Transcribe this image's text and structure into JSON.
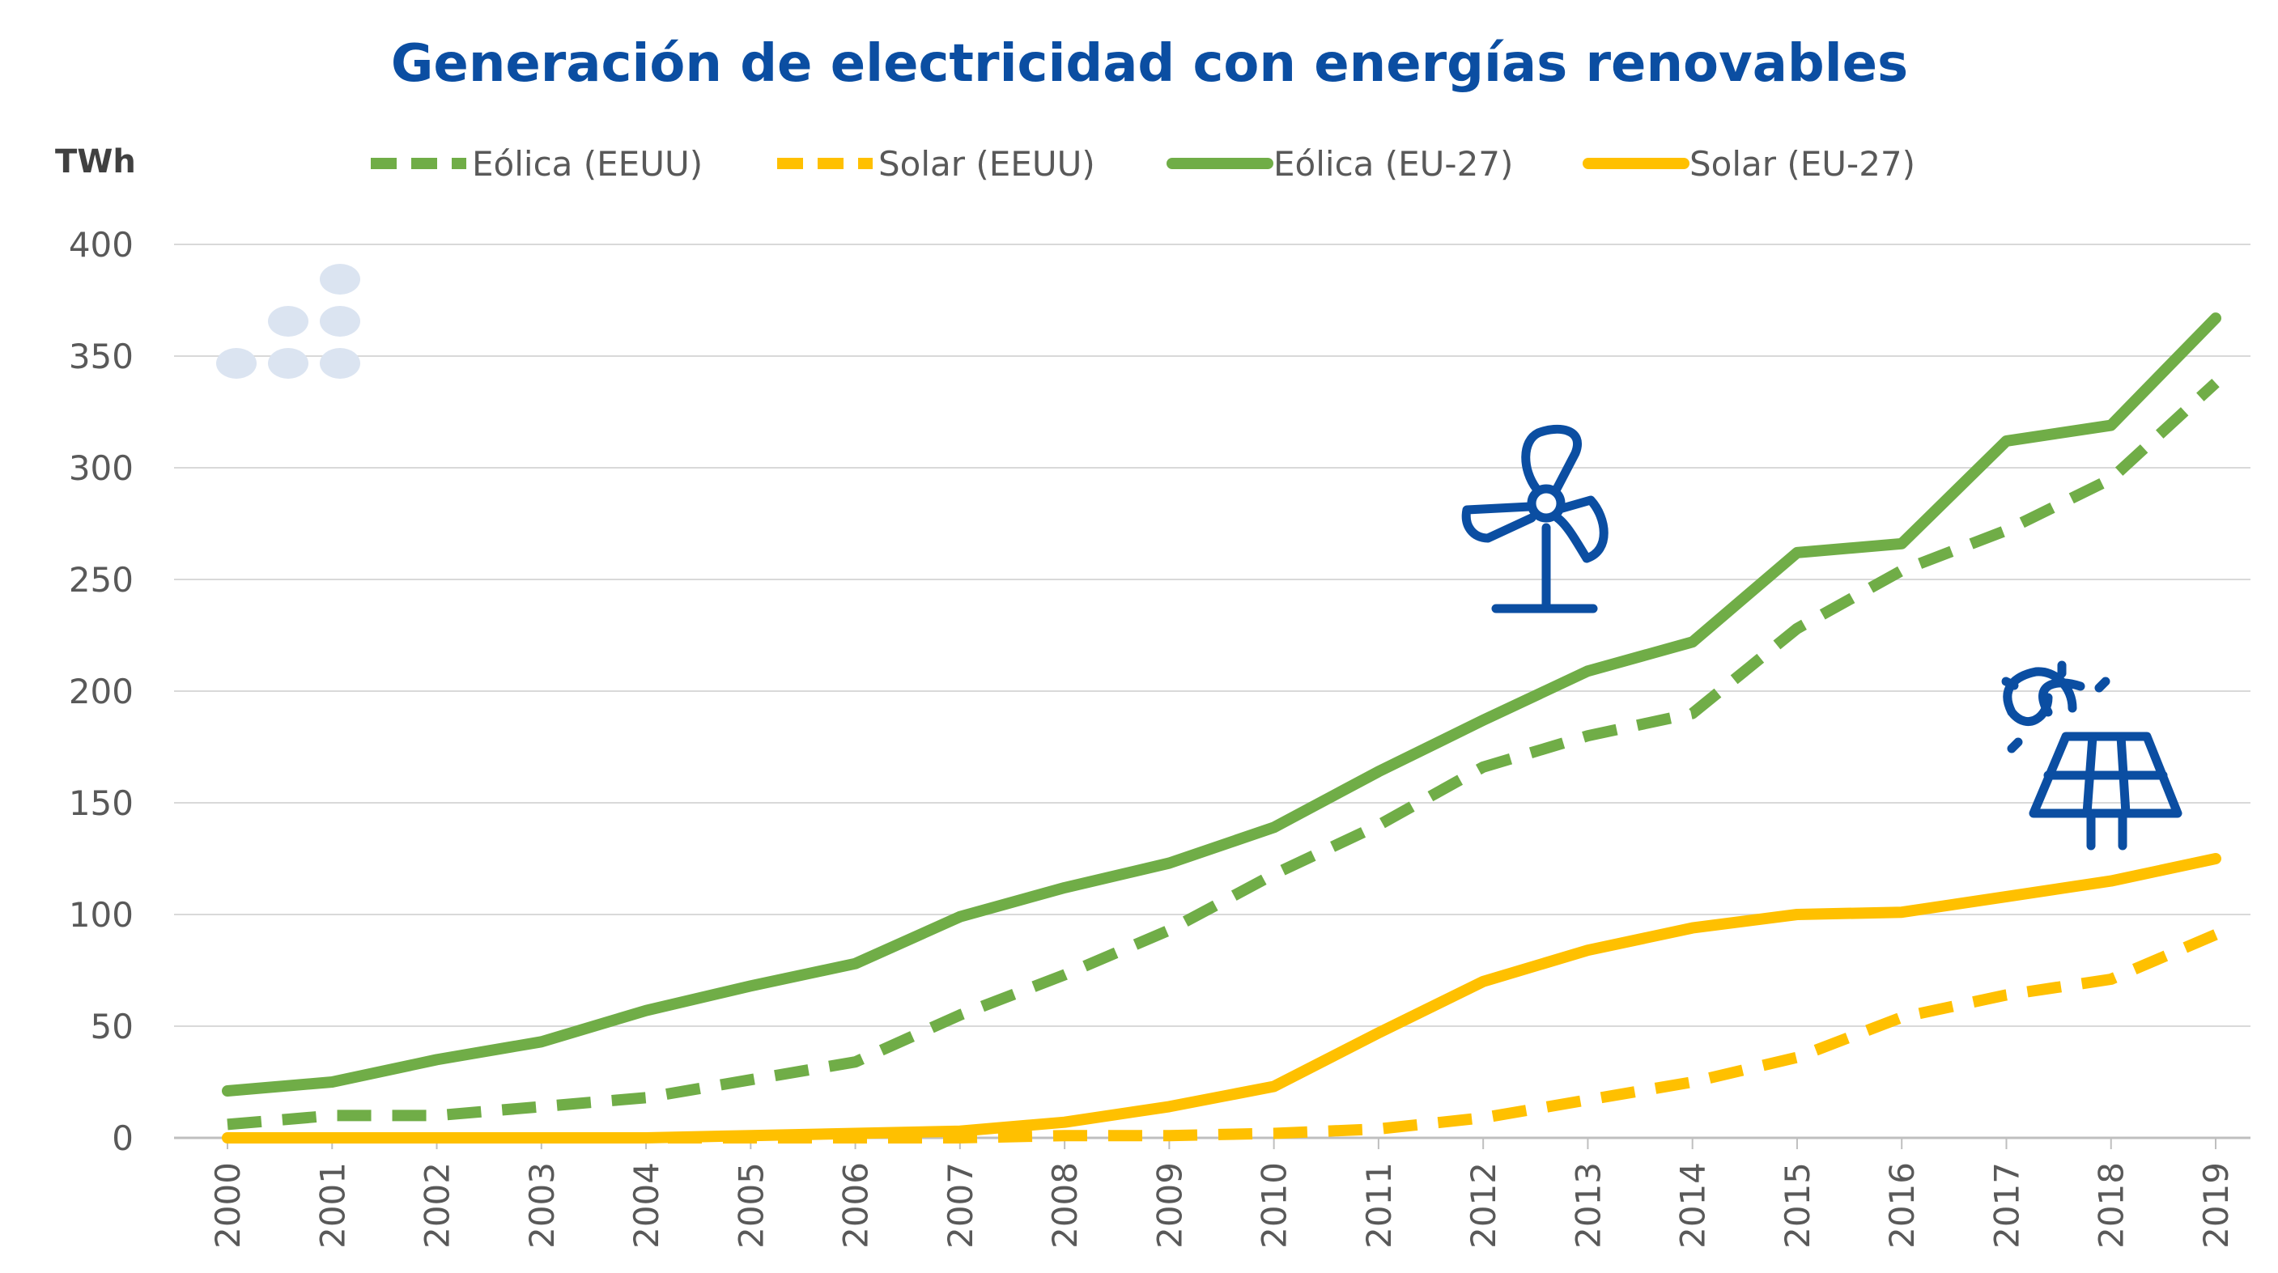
{
  "chart_data": {
    "type": "line",
    "title": "Generación de electricidad con energías renovables",
    "ylabel": "TWh",
    "xlabel": "",
    "categories": [
      "2000",
      "2001",
      "2002",
      "2003",
      "2004",
      "2005",
      "2006",
      "2007",
      "2008",
      "2009",
      "2010",
      "2011",
      "2012",
      "2013",
      "2014",
      "2015",
      "2016",
      "2017",
      "2018",
      "2019"
    ],
    "yticks": [
      "0",
      "50",
      "100",
      "150",
      "200",
      "250",
      "300",
      "350",
      "400"
    ],
    "ylim": [
      0,
      400
    ],
    "grid": true,
    "legend_position": "top",
    "series": [
      {
        "name": "Eólica (EEUU)",
        "style": "dashed",
        "color": "#70ad47",
        "values": [
          6,
          10,
          10,
          14,
          18,
          26,
          34,
          55,
          73,
          93,
          118,
          140,
          166,
          180,
          190,
          228,
          254,
          272,
          295,
          338
        ]
      },
      {
        "name": "Solar (EEUU)",
        "style": "dashed",
        "color": "#ffc000",
        "values": [
          0,
          0,
          0,
          0,
          0,
          0,
          0,
          0,
          1,
          1,
          2,
          4,
          9,
          17,
          25,
          36,
          54,
          64,
          71,
          91
        ]
      },
      {
        "name": "Eólica (EU-27)",
        "style": "solid",
        "color": "#70ad47",
        "values": [
          21,
          25,
          35,
          43,
          57,
          68,
          78,
          99,
          112,
          123,
          139,
          164,
          187,
          209,
          222,
          262,
          266,
          312,
          319,
          367
        ]
      },
      {
        "name": "Solar (EU-27)",
        "style": "solid",
        "color": "#ffc000",
        "values": [
          0,
          0,
          0,
          0,
          0,
          1,
          2,
          3,
          7,
          14,
          23,
          47,
          70,
          84,
          94,
          100,
          101,
          108,
          115,
          125
        ]
      }
    ],
    "icons": [
      "wind-turbine-icon",
      "solar-panel-icon",
      "dots-decoration-icon"
    ],
    "icon_color": "#0b4ea2"
  }
}
